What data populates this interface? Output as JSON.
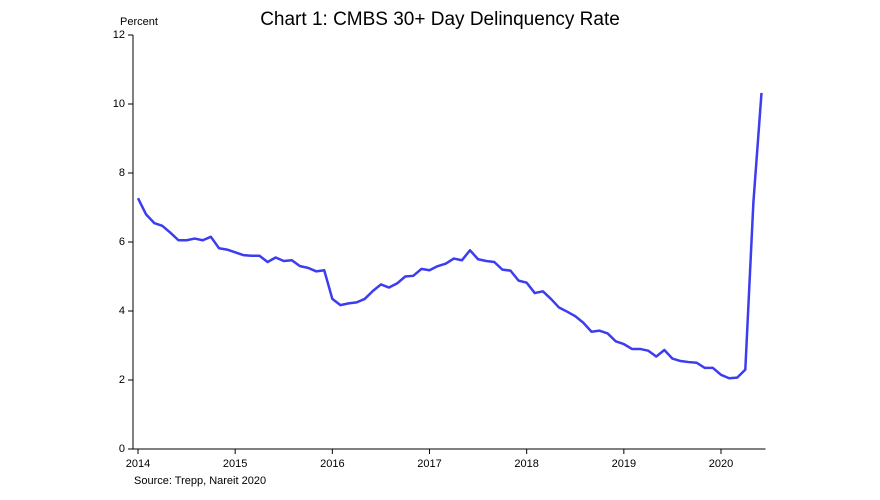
{
  "chart_data": {
    "type": "line",
    "title": "Chart 1: CMBS 30+ Day Delinquency Rate",
    "y_label": "Percent",
    "source": "Source: Trepp, Nareit 2020",
    "x": [
      2014,
      2014.0833,
      2014.1667,
      2014.25,
      2014.3333,
      2014.4167,
      2014.5,
      2014.5833,
      2014.6667,
      2014.75,
      2014.8333,
      2014.9167,
      2015,
      2015.0833,
      2015.1667,
      2015.25,
      2015.3333,
      2015.4167,
      2015.5,
      2015.5833,
      2015.6667,
      2015.75,
      2015.8333,
      2015.9167,
      2016,
      2016.0833,
      2016.1667,
      2016.25,
      2016.3333,
      2016.4167,
      2016.5,
      2016.5833,
      2016.6667,
      2016.75,
      2016.8333,
      2016.9167,
      2017,
      2017.0833,
      2017.1667,
      2017.25,
      2017.3333,
      2017.4167,
      2017.5,
      2017.5833,
      2017.6667,
      2017.75,
      2017.8333,
      2017.9167,
      2018,
      2018.0833,
      2018.1667,
      2018.25,
      2018.3333,
      2018.4167,
      2018.5,
      2018.5833,
      2018.6667,
      2018.75,
      2018.8333,
      2018.9167,
      2019,
      2019.0833,
      2019.1667,
      2019.25,
      2019.3333,
      2019.4167,
      2019.5,
      2019.5833,
      2019.6667,
      2019.75,
      2019.8333,
      2019.9167,
      2020,
      2020.0833,
      2020.1667,
      2020.25,
      2020.3333,
      2020.4167
    ],
    "series": [
      {
        "name": "CMBS 30+ Day Delinquency Rate",
        "color": "#3c3cf0",
        "values": [
          7.27,
          6.8,
          6.55,
          6.47,
          6.27,
          6.05,
          6.05,
          6.1,
          6.05,
          6.15,
          5.82,
          5.78,
          5.7,
          5.62,
          5.6,
          5.6,
          5.42,
          5.55,
          5.45,
          5.47,
          5.3,
          5.25,
          5.15,
          5.18,
          4.35,
          4.17,
          4.22,
          4.25,
          4.35,
          4.58,
          4.77,
          4.68,
          4.8,
          5.0,
          5.02,
          5.22,
          5.18,
          5.3,
          5.37,
          5.52,
          5.47,
          5.76,
          5.5,
          5.45,
          5.42,
          5.2,
          5.17,
          4.88,
          4.82,
          4.52,
          4.57,
          4.35,
          4.1,
          3.98,
          3.85,
          3.66,
          3.4,
          3.43,
          3.35,
          3.12,
          3.04,
          2.9,
          2.9,
          2.85,
          2.68,
          2.87,
          2.62,
          2.55,
          2.52,
          2.5,
          2.35,
          2.35,
          2.15,
          2.05,
          2.07,
          2.3,
          7.15,
          10.32
        ]
      }
    ],
    "xlim": [
      2014,
      2020.4167
    ],
    "xticks": [
      2014,
      2015,
      2016,
      2017,
      2018,
      2019,
      2020
    ],
    "ylim": [
      0,
      12
    ],
    "yticks": [
      0,
      2,
      4,
      6,
      8,
      10,
      12
    ],
    "grid": false
  }
}
